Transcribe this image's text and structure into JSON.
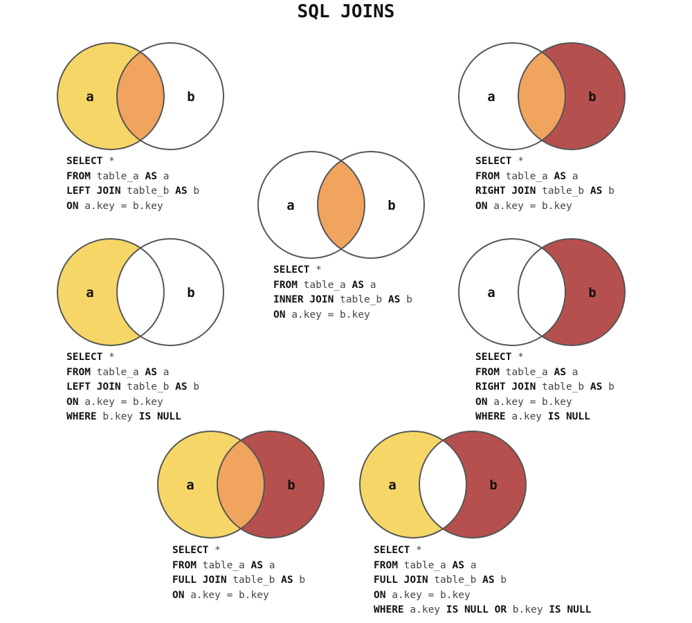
{
  "title": "SQL JOINS",
  "colors": {
    "table_a": "#f6d667",
    "table_b": "#b6504e",
    "overlap": "#f0a45e",
    "outline": "#555555"
  },
  "panels": [
    {
      "id": "left-join",
      "circle_labels": [
        "a",
        "b"
      ],
      "fill": {
        "a_only": "table_a",
        "overlap": "overlap",
        "b_only": "none"
      },
      "query": [
        [
          {
            "t": "SELECT",
            "k": true
          },
          {
            "t": " *",
            "k": false
          }
        ],
        [
          {
            "t": "FROM",
            "k": true
          },
          {
            "t": " table_a ",
            "k": false
          },
          {
            "t": "AS",
            "k": true
          },
          {
            "t": " a",
            "k": false
          }
        ],
        [
          {
            "t": "LEFT JOIN",
            "k": true
          },
          {
            "t": " table_b ",
            "k": false
          },
          {
            "t": "AS",
            "k": true
          },
          {
            "t": " b",
            "k": false
          }
        ],
        [
          {
            "t": "ON",
            "k": true
          },
          {
            "t": " a.key = b.key",
            "k": false
          }
        ]
      ]
    },
    {
      "id": "inner-join",
      "circle_labels": [
        "a",
        "b"
      ],
      "fill": {
        "a_only": "none",
        "overlap": "overlap",
        "b_only": "none"
      },
      "query": [
        [
          {
            "t": "SELECT",
            "k": true
          },
          {
            "t": " *",
            "k": false
          }
        ],
        [
          {
            "t": "FROM",
            "k": true
          },
          {
            "t": " table_a ",
            "k": false
          },
          {
            "t": "AS",
            "k": true
          },
          {
            "t": " a",
            "k": false
          }
        ],
        [
          {
            "t": "INNER JOIN",
            "k": true
          },
          {
            "t": " table_b ",
            "k": false
          },
          {
            "t": "AS",
            "k": true
          },
          {
            "t": " b",
            "k": false
          }
        ],
        [
          {
            "t": "ON",
            "k": true
          },
          {
            "t": " a.key = b.key",
            "k": false
          }
        ]
      ]
    },
    {
      "id": "right-join",
      "circle_labels": [
        "a",
        "b"
      ],
      "fill": {
        "a_only": "none",
        "overlap": "overlap",
        "b_only": "table_b"
      },
      "query": [
        [
          {
            "t": "SELECT",
            "k": true
          },
          {
            "t": " *",
            "k": false
          }
        ],
        [
          {
            "t": "FROM",
            "k": true
          },
          {
            "t": " table_a ",
            "k": false
          },
          {
            "t": "AS",
            "k": true
          },
          {
            "t": " a",
            "k": false
          }
        ],
        [
          {
            "t": "RIGHT JOIN",
            "k": true
          },
          {
            "t": " table_b ",
            "k": false
          },
          {
            "t": "AS",
            "k": true
          },
          {
            "t": " b",
            "k": false
          }
        ],
        [
          {
            "t": "ON",
            "k": true
          },
          {
            "t": " a.key = b.key",
            "k": false
          }
        ]
      ]
    },
    {
      "id": "left-anti-join",
      "circle_labels": [
        "a",
        "b"
      ],
      "fill": {
        "a_only": "table_a",
        "overlap": "none",
        "b_only": "none"
      },
      "query": [
        [
          {
            "t": "SELECT",
            "k": true
          },
          {
            "t": " *",
            "k": false
          }
        ],
        [
          {
            "t": "FROM",
            "k": true
          },
          {
            "t": " table_a ",
            "k": false
          },
          {
            "t": "AS",
            "k": true
          },
          {
            "t": " a",
            "k": false
          }
        ],
        [
          {
            "t": "LEFT JOIN",
            "k": true
          },
          {
            "t": " table_b ",
            "k": false
          },
          {
            "t": "AS",
            "k": true
          },
          {
            "t": " b",
            "k": false
          }
        ],
        [
          {
            "t": "ON",
            "k": true
          },
          {
            "t": " a.key = b.key",
            "k": false
          }
        ],
        [
          {
            "t": "WHERE",
            "k": true
          },
          {
            "t": " b.key ",
            "k": false
          },
          {
            "t": "IS NULL",
            "k": true
          }
        ]
      ]
    },
    {
      "id": "right-anti-join",
      "circle_labels": [
        "a",
        "b"
      ],
      "fill": {
        "a_only": "none",
        "overlap": "none",
        "b_only": "table_b"
      },
      "query": [
        [
          {
            "t": "SELECT",
            "k": true
          },
          {
            "t": " *",
            "k": false
          }
        ],
        [
          {
            "t": "FROM",
            "k": true
          },
          {
            "t": " table_a ",
            "k": false
          },
          {
            "t": "AS",
            "k": true
          },
          {
            "t": " a",
            "k": false
          }
        ],
        [
          {
            "t": "RIGHT JOIN",
            "k": true
          },
          {
            "t": " table_b ",
            "k": false
          },
          {
            "t": "AS",
            "k": true
          },
          {
            "t": " b",
            "k": false
          }
        ],
        [
          {
            "t": "ON",
            "k": true
          },
          {
            "t": " a.key = b.key",
            "k": false
          }
        ],
        [
          {
            "t": "WHERE",
            "k": true
          },
          {
            "t": " a.key ",
            "k": false
          },
          {
            "t": "IS NULL",
            "k": true
          }
        ]
      ]
    },
    {
      "id": "full-join",
      "circle_labels": [
        "a",
        "b"
      ],
      "fill": {
        "a_only": "table_a",
        "overlap": "overlap",
        "b_only": "table_b"
      },
      "query": [
        [
          {
            "t": "SELECT",
            "k": true
          },
          {
            "t": " *",
            "k": false
          }
        ],
        [
          {
            "t": "FROM",
            "k": true
          },
          {
            "t": " table_a ",
            "k": false
          },
          {
            "t": "AS",
            "k": true
          },
          {
            "t": " a",
            "k": false
          }
        ],
        [
          {
            "t": "FULL JOIN",
            "k": true
          },
          {
            "t": " table_b ",
            "k": false
          },
          {
            "t": "AS",
            "k": true
          },
          {
            "t": " b",
            "k": false
          }
        ],
        [
          {
            "t": "ON",
            "k": true
          },
          {
            "t": " a.key = b.key",
            "k": false
          }
        ]
      ]
    },
    {
      "id": "full-anti-join",
      "circle_labels": [
        "a",
        "b"
      ],
      "fill": {
        "a_only": "table_a",
        "overlap": "none",
        "b_only": "table_b"
      },
      "query": [
        [
          {
            "t": "SELECT",
            "k": true
          },
          {
            "t": " *",
            "k": false
          }
        ],
        [
          {
            "t": "FROM",
            "k": true
          },
          {
            "t": " table_a ",
            "k": false
          },
          {
            "t": "AS",
            "k": true
          },
          {
            "t": " a",
            "k": false
          }
        ],
        [
          {
            "t": "FULL JOIN",
            "k": true
          },
          {
            "t": " table_b ",
            "k": false
          },
          {
            "t": "AS",
            "k": true
          },
          {
            "t": " b",
            "k": false
          }
        ],
        [
          {
            "t": "ON",
            "k": true
          },
          {
            "t": " a.key = b.key",
            "k": false
          }
        ],
        [
          {
            "t": "WHERE",
            "k": true
          },
          {
            "t": " a.key ",
            "k": false
          },
          {
            "t": "IS NULL",
            "k": true
          },
          {
            "t": " ",
            "k": false
          },
          {
            "t": "OR",
            "k": true
          },
          {
            "t": " b.key ",
            "k": false
          },
          {
            "t": "IS NULL",
            "k": true
          }
        ]
      ]
    }
  ]
}
